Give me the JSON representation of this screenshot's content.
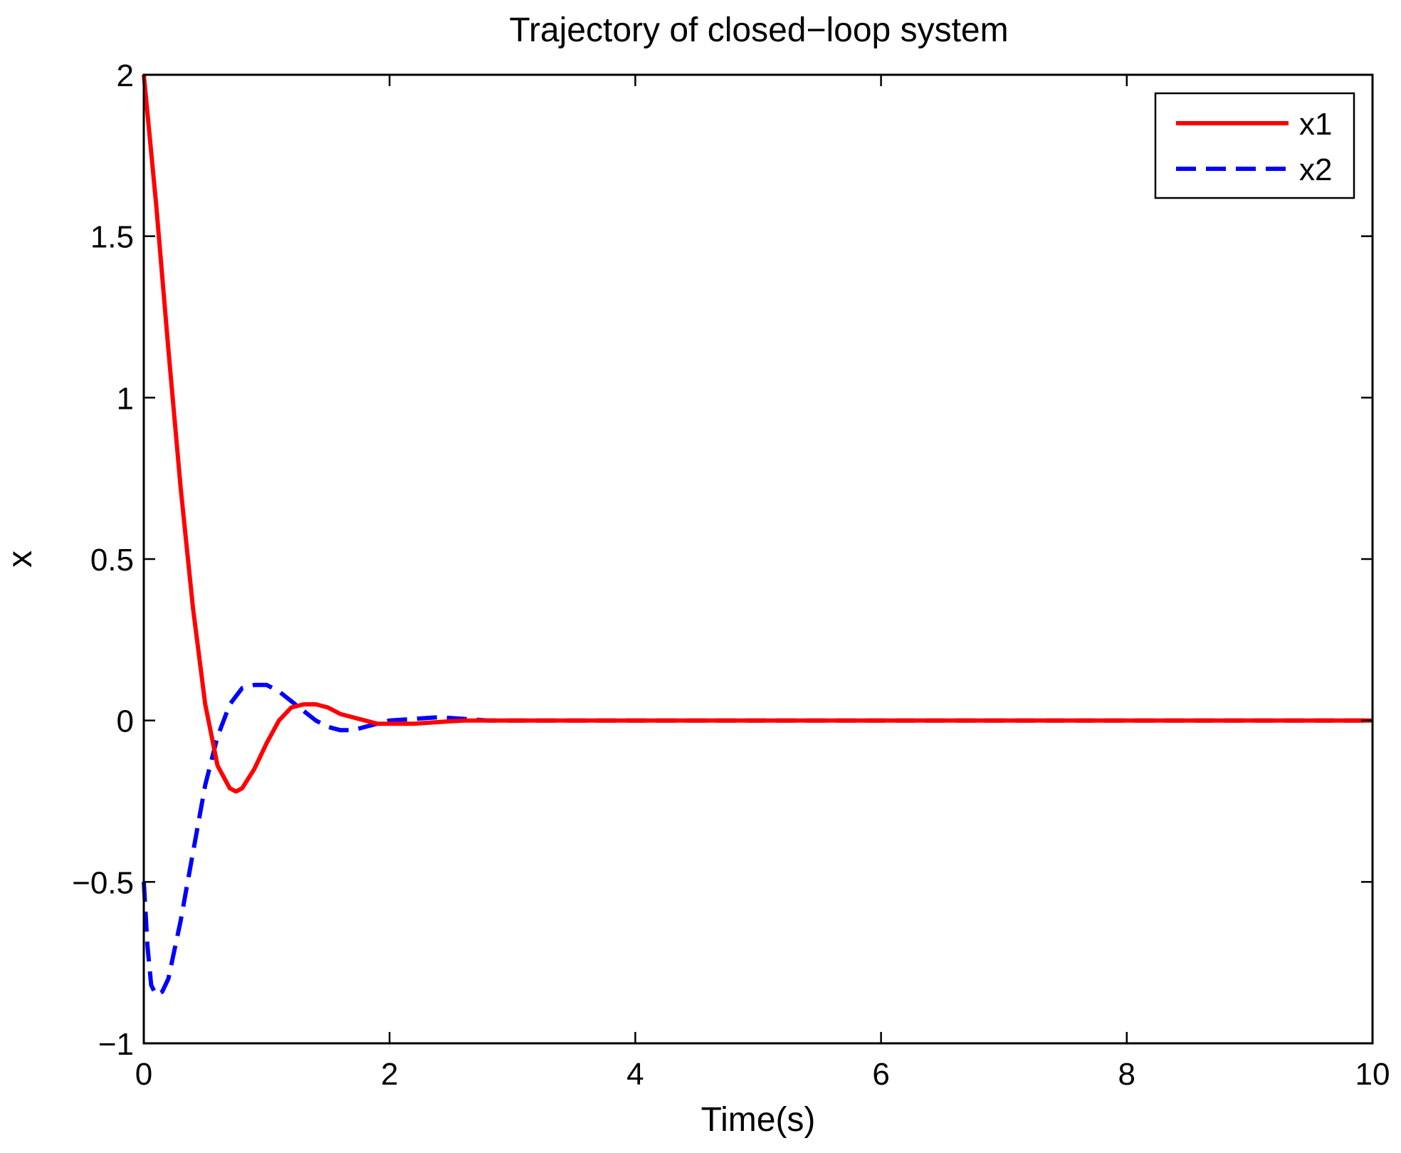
{
  "chart_data": {
    "type": "line",
    "title": "Trajectory of closed−loop system",
    "xlabel": "Time(s)",
    "ylabel": "x",
    "xlim": [
      0,
      10
    ],
    "ylim": [
      -1,
      2
    ],
    "xticks": [
      0,
      2,
      4,
      6,
      8,
      10
    ],
    "xtick_labels": [
      "0",
      "2",
      "4",
      "6",
      "8",
      "10"
    ],
    "yticks": [
      -1,
      -0.5,
      0,
      0.5,
      1,
      1.5,
      2
    ],
    "ytick_labels": [
      "−1",
      "−0.5",
      "0",
      "0.5",
      "1",
      "1.5",
      "2"
    ],
    "grid": false,
    "legend_position": "top-right",
    "series": [
      {
        "name": "x1",
        "color": "#ff0000",
        "style": "solid",
        "x": [
          0,
          0.1,
          0.2,
          0.3,
          0.4,
          0.5,
          0.6,
          0.7,
          0.75,
          0.8,
          0.9,
          1.0,
          1.1,
          1.2,
          1.3,
          1.4,
          1.5,
          1.6,
          1.7,
          1.8,
          1.9,
          2.0,
          2.1,
          2.2,
          2.4,
          2.6,
          2.8,
          3.0,
          3.5,
          4,
          5,
          6,
          7,
          8,
          9,
          10
        ],
        "y": [
          2.0,
          1.6,
          1.15,
          0.72,
          0.35,
          0.05,
          -0.14,
          -0.21,
          -0.22,
          -0.21,
          -0.15,
          -0.07,
          0.0,
          0.04,
          0.05,
          0.05,
          0.04,
          0.02,
          0.01,
          0.0,
          -0.01,
          -0.01,
          -0.01,
          -0.01,
          -0.005,
          0.0,
          0.0,
          0.0,
          0,
          0,
          0,
          0,
          0,
          0,
          0,
          0
        ]
      },
      {
        "name": "x2",
        "color": "#0000ff",
        "style": "dashed",
        "x": [
          0,
          0.03,
          0.06,
          0.1,
          0.15,
          0.2,
          0.3,
          0.4,
          0.5,
          0.6,
          0.7,
          0.8,
          0.9,
          1.0,
          1.1,
          1.2,
          1.3,
          1.4,
          1.5,
          1.6,
          1.7,
          1.8,
          1.9,
          2.0,
          2.2,
          2.4,
          2.6,
          2.8,
          3.0,
          3.5,
          4,
          5,
          6,
          7,
          8,
          9,
          10
        ],
        "y": [
          -0.5,
          -0.7,
          -0.82,
          -0.85,
          -0.84,
          -0.8,
          -0.62,
          -0.41,
          -0.2,
          -0.05,
          0.05,
          0.1,
          0.11,
          0.11,
          0.09,
          0.06,
          0.03,
          0.0,
          -0.02,
          -0.03,
          -0.03,
          -0.02,
          -0.01,
          0.0,
          0.005,
          0.01,
          0.005,
          0.0,
          0.0,
          0,
          0,
          0,
          0,
          0,
          0,
          0,
          0
        ]
      }
    ]
  }
}
